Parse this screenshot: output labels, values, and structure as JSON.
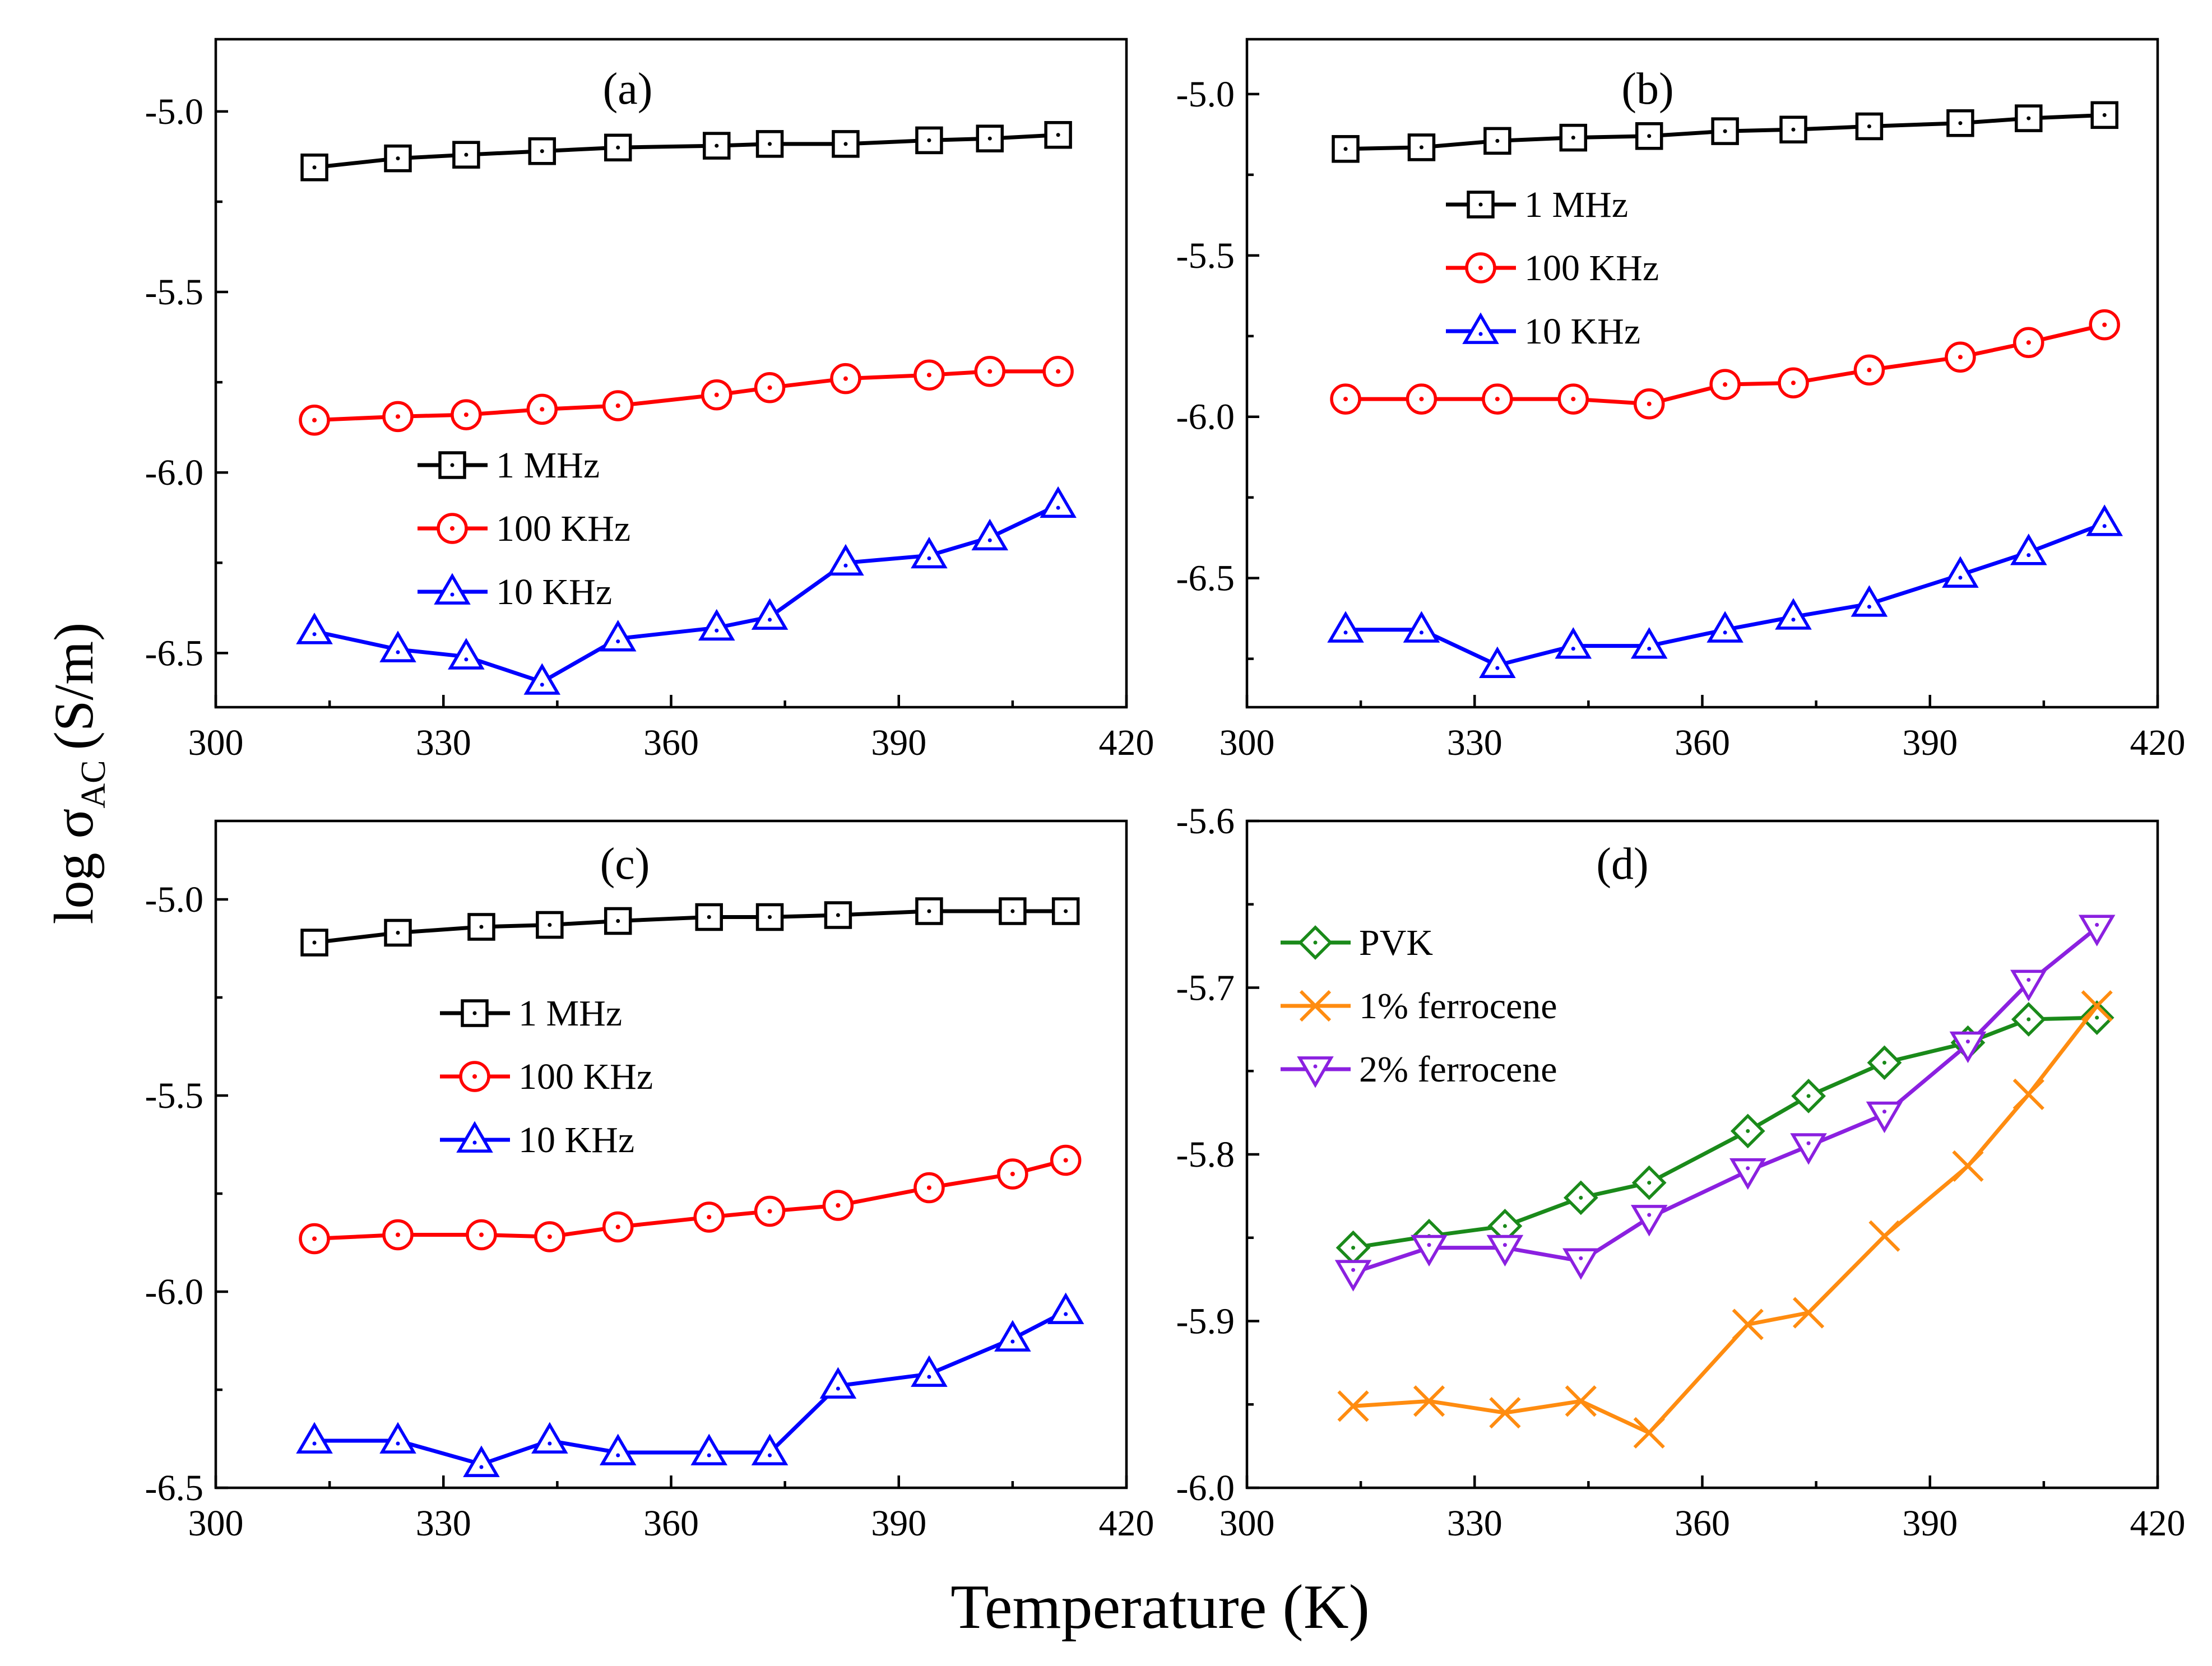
{
  "figure": {
    "xlabel": "Temperature (K)",
    "ylabel_main": "log σ",
    "ylabel_sub": "AC",
    "ylabel_unit": "(S/m)"
  },
  "chart_data": [
    {
      "type": "line",
      "panel": "(a)",
      "xlim": [
        300,
        420
      ],
      "xticks": [
        "300",
        "330",
        "360",
        "390",
        "420"
      ],
      "ylim": [
        -6.65,
        -4.8
      ],
      "yticks": [
        "-5.0",
        "-5.5",
        "-6.0",
        "-6.5"
      ],
      "ytick_values": [
        -5.0,
        -5.5,
        -6.0,
        -6.5
      ],
      "legend_position": "center-left",
      "x": [
        313,
        324,
        333,
        343,
        353,
        366,
        373,
        383,
        394,
        402,
        411
      ],
      "series": [
        {
          "name": "1 MHz",
          "color": "#000000",
          "marker": "square",
          "values": [
            -5.155,
            -5.13,
            -5.12,
            -5.11,
            -5.1,
            -5.095,
            -5.09,
            -5.09,
            -5.08,
            -5.075,
            -5.065
          ]
        },
        {
          "name": "100 KHz",
          "color": "#ff0000",
          "marker": "circle",
          "values": [
            -5.855,
            -5.845,
            -5.84,
            -5.825,
            -5.815,
            -5.785,
            -5.765,
            -5.74,
            -5.73,
            -5.72,
            -5.72
          ]
        },
        {
          "name": "10 KHz",
          "color": "#0000ff",
          "marker": "triangle-up",
          "values": [
            -6.44,
            -6.49,
            -6.51,
            -6.58,
            -6.46,
            -6.43,
            -6.4,
            -6.25,
            -6.23,
            -6.18,
            -6.09
          ]
        }
      ]
    },
    {
      "type": "line",
      "panel": "(b)",
      "xlim": [
        300,
        420
      ],
      "xticks": [
        "300",
        "330",
        "360",
        "390",
        "420"
      ],
      "ylim": [
        -6.9,
        -4.83
      ],
      "yticks": [
        "-5.0",
        "-5.5",
        "-6.0",
        "-6.5"
      ],
      "ytick_values": [
        -5.0,
        -5.5,
        -6.0,
        -6.5
      ],
      "legend_position": "upper-left",
      "x": [
        313,
        323,
        333,
        343,
        353,
        363,
        372,
        382,
        394,
        403,
        413
      ],
      "series": [
        {
          "name": "1 MHz",
          "color": "#000000",
          "marker": "square",
          "values": [
            -5.17,
            -5.165,
            -5.145,
            -5.135,
            -5.13,
            -5.115,
            -5.11,
            -5.1,
            -5.09,
            -5.075,
            -5.065
          ]
        },
        {
          "name": "100 KHz",
          "color": "#ff0000",
          "marker": "circle",
          "values": [
            -5.945,
            -5.945,
            -5.945,
            -5.945,
            -5.96,
            -5.9,
            -5.895,
            -5.855,
            -5.815,
            -5.77,
            -5.715
          ]
        },
        {
          "name": "10 KHz",
          "color": "#0000ff",
          "marker": "triangle-up",
          "values": [
            -6.66,
            -6.66,
            -6.77,
            -6.71,
            -6.71,
            -6.66,
            -6.62,
            -6.58,
            -6.49,
            -6.42,
            -6.33
          ]
        }
      ]
    },
    {
      "type": "line",
      "panel": "(c)",
      "xlim": [
        300,
        420
      ],
      "xticks": [
        "300",
        "330",
        "360",
        "390",
        "420"
      ],
      "ylim": [
        -6.5,
        -4.8
      ],
      "yticks": [
        "-5.0",
        "-5.5",
        "-6.0",
        "-6.5"
      ],
      "ytick_values": [
        -5.0,
        -5.5,
        -6.0,
        -6.5
      ],
      "legend_position": "center-left",
      "x": [
        313,
        324,
        335,
        344,
        353,
        365,
        373,
        382,
        394,
        405,
        412
      ],
      "series": [
        {
          "name": "1 MHz",
          "color": "#000000",
          "marker": "square",
          "values": [
            -5.11,
            -5.085,
            -5.07,
            -5.065,
            -5.055,
            -5.045,
            -5.045,
            -5.04,
            -5.03,
            -5.03,
            -5.03
          ]
        },
        {
          "name": "100 KHz",
          "color": "#ff0000",
          "marker": "circle",
          "values": [
            -5.865,
            -5.855,
            -5.855,
            -5.86,
            -5.835,
            -5.81,
            -5.795,
            -5.78,
            -5.735,
            -5.7,
            -5.665
          ]
        },
        {
          "name": "10 KHz",
          "color": "#0000ff",
          "marker": "triangle-up",
          "values": [
            -6.38,
            -6.38,
            -6.44,
            -6.38,
            -6.41,
            -6.41,
            -6.41,
            -6.24,
            -6.21,
            -6.12,
            -6.05
          ]
        }
      ]
    },
    {
      "type": "line",
      "panel": "(d)",
      "xlim": [
        300,
        420
      ],
      "xticks": [
        "300",
        "330",
        "360",
        "390",
        "420"
      ],
      "ylim": [
        -6.0,
        -5.6
      ],
      "yticks": [
        "-5.6",
        "-5.7",
        "-5.8",
        "-5.9",
        "-6.0"
      ],
      "ytick_values": [
        -5.6,
        -5.7,
        -5.8,
        -5.9,
        -6.0
      ],
      "legend_position": "upper-left",
      "x": [
        314,
        324,
        334,
        344,
        353,
        366,
        374,
        384,
        395,
        403,
        412
      ],
      "series": [
        {
          "name": "PVK",
          "color": "#1a8a1a",
          "marker": "diamond",
          "values": [
            -5.856,
            -5.849,
            -5.843,
            -5.826,
            -5.817,
            -5.786,
            -5.765,
            -5.745,
            -5.733,
            -5.719,
            -5.718
          ]
        },
        {
          "name": "1% ferrocene",
          "color": "#ff8c10",
          "marker": "x",
          "values": [
            -5.951,
            -5.948,
            -5.955,
            -5.948,
            -5.967,
            -5.902,
            -5.895,
            -5.849,
            -5.807,
            -5.764,
            -5.711
          ]
        },
        {
          "name": "2% ferrocene",
          "color": "#8b20e0",
          "marker": "triangle-down",
          "values": [
            -5.871,
            -5.856,
            -5.856,
            -5.864,
            -5.838,
            -5.81,
            -5.795,
            -5.776,
            -5.734,
            -5.697,
            -5.664
          ]
        }
      ]
    }
  ]
}
